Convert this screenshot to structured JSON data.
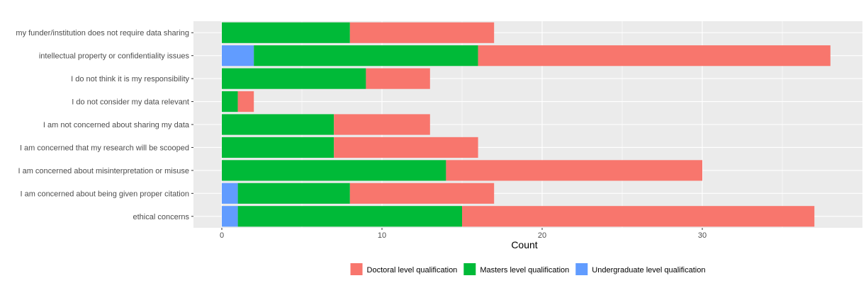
{
  "chart_data": {
    "type": "bar",
    "orientation": "horizontal",
    "stacked": true,
    "title": "",
    "xlabel": "Count",
    "ylabel": "",
    "xlim": [
      0,
      39
    ],
    "xticks": [
      0,
      10,
      20,
      30
    ],
    "grid": true,
    "legend_position": "bottom",
    "categories": [
      "my funder/institution does not require data sharing",
      "intellectual property or confidentiality issues",
      "I do not think it is my responsibility",
      "I do not consider my data relevant",
      "I am not concerned about sharing my data",
      "I am concerned that my research will be scooped",
      "I am concerned about misinterpretation or misuse",
      "I am concerned about being given proper citation",
      "ethical concerns"
    ],
    "series": [
      {
        "name": "Doctoral level qualification",
        "color": "#F8766D",
        "values": [
          9,
          22,
          4,
          1,
          6,
          9,
          16,
          9,
          22
        ]
      },
      {
        "name": "Masters level qualification",
        "color": "#00BA38",
        "values": [
          8,
          14,
          9,
          1,
          7,
          7,
          14,
          7,
          14
        ]
      },
      {
        "name": "Undergraduate level qualification",
        "color": "#619CFF",
        "values": [
          0,
          2,
          0,
          0,
          0,
          0,
          0,
          1,
          1
        ]
      }
    ],
    "stack_order": [
      "Undergraduate level qualification",
      "Masters level qualification",
      "Doctoral level qualification"
    ],
    "legend_order": [
      "Doctoral level qualification",
      "Masters level qualification",
      "Undergraduate level qualification"
    ],
    "panel_background": "#EBEBEB",
    "grid_color": "#FFFFFF"
  }
}
